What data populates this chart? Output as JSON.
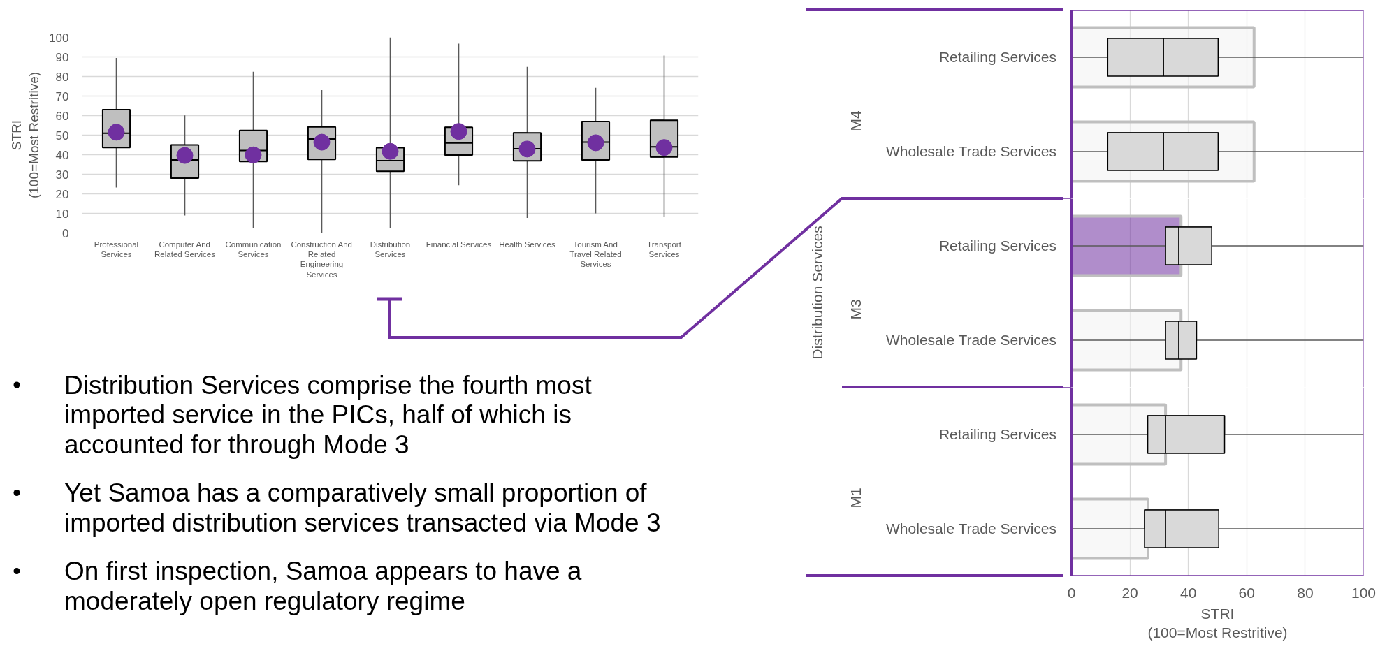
{
  "chart_data": [
    {
      "type": "box",
      "ylabel": "STRI\n(100=Most Restritive)",
      "categories": [
        "Professional Services",
        "Computer And Related Services",
        "Communication Services",
        "Construction And Related Engineering Services",
        "Distribution Services",
        "Financial Services",
        "Health Services",
        "Tourism And Travel Related Services",
        "Transport Services"
      ],
      "series": [
        {
          "type": "box",
          "color": "#bfbfbf",
          "boxes": [
            {
              "low": 23.2,
              "q1": 43.7,
              "median": 51,
              "q3": 63,
              "high": 89.5
            },
            {
              "low": 8.9,
              "q1": 28,
              "median": 37.3,
              "q3": 45,
              "high": 60.1
            },
            {
              "low": 2.6,
              "q1": 36.5,
              "median": 42.1,
              "q3": 52.4,
              "high": 82.4
            },
            {
              "low": 0,
              "q1": 37.6,
              "median": 48,
              "q3": 54.2,
              "high": 73
            },
            {
              "low": 2.6,
              "q1": 31.5,
              "median": 37,
              "q3": 43.6,
              "high": 100
            },
            {
              "low": 24.4,
              "q1": 39.8,
              "median": 46,
              "q3": 54,
              "high": 96.8
            },
            {
              "low": 7.7,
              "q1": 36.9,
              "median": 43,
              "q3": 51.2,
              "high": 84.9
            },
            {
              "low": 10,
              "q1": 37.3,
              "median": 46.4,
              "q3": 57,
              "high": 74.2
            },
            {
              "low": 8,
              "q1": 38.8,
              "median": 44,
              "q3": 57.6,
              "high": 90.7
            }
          ]
        },
        {
          "type": "scatter",
          "color": "#7030a0",
          "x": [
            "Professional Services",
            "Computer And Related Services",
            "Communication Services",
            "Construction And Related Engineering Services",
            "Distribution Services",
            "Financial Services",
            "Health Services",
            "Tourism And Travel Related Services",
            "Transport Services"
          ],
          "values": [
            51.5,
            39.6,
            39.9,
            46.4,
            41.7,
            51.9,
            42.9,
            46.1,
            43.7
          ]
        }
      ],
      "ylim": [
        0,
        100
      ],
      "yticks": [
        0,
        10,
        20,
        30,
        40,
        50,
        60,
        70,
        80,
        90,
        100
      ],
      "grid": "y",
      "marker": "circle",
      "annotations": [
        "Distribution Services comprise the fourth most imported service in the PICs, half of which is accounted for through Mode 3",
        "Yet Samoa has a comparatively small proportion of imported distribution services transacted via Mode 3",
        "On first inspection, Samoa appears to have a moderately open regulatory regime"
      ]
    },
    {
      "type": "box",
      "orientation": "horizontal",
      "ylabel": "M4",
      "categories": [
        "Retailing Services",
        "Wholesale Trade Services"
      ],
      "series": [
        {
          "type": "bar",
          "colors": [
            "#f2f2f2",
            "#f2f2f2"
          ],
          "values": [
            62.5,
            62.5
          ]
        },
        {
          "type": "box",
          "color": "#d9d9d9",
          "boxes": [
            {
              "low": 0,
              "q1": 12.4,
              "median": 31.5,
              "q3": 50.2,
              "high": 100
            },
            {
              "low": 0,
              "q1": 12.4,
              "median": 31.5,
              "q3": 50.2,
              "high": 100
            }
          ]
        }
      ],
      "xlim": [
        0,
        100
      ],
      "xticks": [
        0,
        20,
        40,
        60,
        80,
        100
      ],
      "grid": "x",
      "tick_labels": "y"
    },
    {
      "type": "box",
      "orientation": "horizontal",
      "ylabel": "M3",
      "categories": [
        "Retailing Services",
        "Wholesale Trade Services"
      ],
      "series": [
        {
          "type": "bar",
          "colors": [
            "#7030a0",
            "#f2f2f2"
          ],
          "values": [
            37.5,
            37.5
          ]
        },
        {
          "type": "box",
          "color": "#d9d9d9",
          "boxes": [
            {
              "low": 0,
              "q1": 32.2,
              "median": 36.7,
              "q3": 48,
              "high": 100
            },
            {
              "low": 0,
              "q1": 32.2,
              "median": 36.7,
              "q3": 42.8,
              "high": 100
            }
          ]
        }
      ],
      "xlim": [
        0,
        100
      ],
      "xticks": [
        0,
        20,
        40,
        60,
        80,
        100
      ],
      "grid": "x",
      "tick_labels": "y",
      "annotations": [
        "Distribution Services"
      ]
    },
    {
      "type": "box",
      "orientation": "horizontal",
      "ylabel": "M1",
      "xlabel": "STRI\n(100=Most Restritive)",
      "categories": [
        "Retailing Services",
        "Wholesale Trade Services"
      ],
      "series": [
        {
          "type": "bar",
          "colors": [
            "#f2f2f2",
            "#f2f2f2"
          ],
          "values": [
            32.2,
            26.2
          ]
        },
        {
          "type": "box",
          "color": "#d9d9d9",
          "boxes": [
            {
              "low": 0,
              "q1": 26.1,
              "median": 32.2,
              "q3": 52.4,
              "high": 100
            },
            {
              "low": 0,
              "q1": 25,
              "median": 32.2,
              "q3": 50.4,
              "high": 100
            }
          ]
        }
      ],
      "xlim": [
        0,
        100
      ],
      "xticks": [
        0,
        20,
        40,
        60,
        80,
        100
      ],
      "grid": "x"
    }
  ]
}
